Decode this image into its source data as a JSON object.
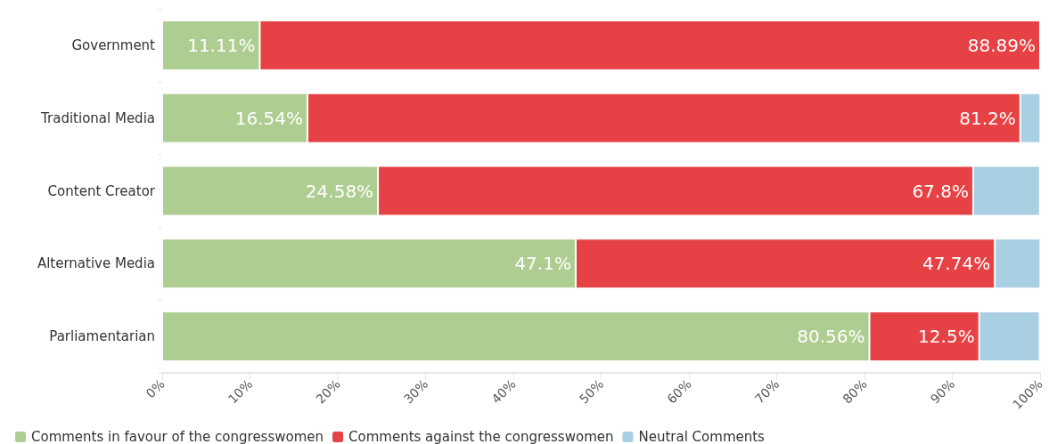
{
  "chart_data": {
    "type": "bar",
    "orientation": "horizontal",
    "stacked": true,
    "categories": [
      "Government",
      "Traditional Media",
      "Content Creator",
      "Alternative Media",
      "Parliamentarian"
    ],
    "series": [
      {
        "name": "Comments in favour of the congresswomen",
        "color": "#aecd91",
        "values": [
          11.11,
          16.54,
          24.58,
          47.1,
          80.56
        ],
        "value_labels": [
          "11.11%",
          "16.54%",
          "24.58%",
          "47.1%",
          "80.56%"
        ]
      },
      {
        "name": "Comments against the congresswomen",
        "color": "#e64245",
        "values": [
          88.89,
          81.2,
          67.8,
          47.74,
          12.5
        ],
        "value_labels": [
          "88.89%",
          "81.2%",
          "67.8%",
          "47.74%",
          "12.5%"
        ]
      },
      {
        "name": "Neutral Comments",
        "color": "#a9cfe3",
        "values": [
          null,
          2.3,
          7.6,
          5.2,
          6.9
        ]
      }
    ],
    "xlim": [
      0,
      100
    ],
    "xticks": [
      {
        "value": 0,
        "label": "0%"
      },
      {
        "value": 10,
        "label": "10%"
      },
      {
        "value": 20,
        "label": "20%"
      },
      {
        "value": 30,
        "label": "30%"
      },
      {
        "value": 40,
        "label": "40%"
      },
      {
        "value": 50,
        "label": "50%"
      },
      {
        "value": 60,
        "label": "60%"
      },
      {
        "value": 70,
        "label": "70%"
      },
      {
        "value": 80,
        "label": "80%"
      },
      {
        "value": 90,
        "label": "90%"
      },
      {
        "value": 100,
        "label": "100%"
      }
    ],
    "grid": false,
    "legend": "bottom left"
  }
}
